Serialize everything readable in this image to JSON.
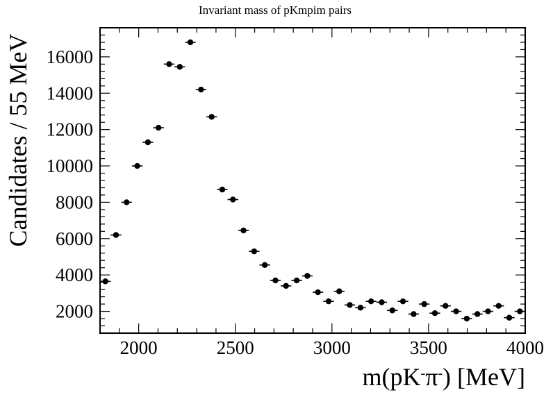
{
  "chart_data": {
    "type": "scatter",
    "title": "Invariant mass of pKmpim pairs",
    "xlabel_main": "m(pK",
    "xlabel_sup1": "-",
    "xlabel_pi": "π",
    "xlabel_sup2": "-",
    "xlabel_tail": ") [MeV]",
    "ylabel": "Candidates / 55 MeV",
    "xlim": [
      1800,
      4000
    ],
    "ylim": [
      800,
      17600
    ],
    "bin_width": 55,
    "xticks": [
      2000,
      2500,
      3000,
      3500,
      4000
    ],
    "yticks": [
      2000,
      4000,
      6000,
      8000,
      10000,
      12000,
      14000,
      16000
    ],
    "xtick_labels": [
      "2000",
      "2500",
      "3000",
      "3500",
      "4000"
    ],
    "ytick_labels": [
      "2000",
      "4000",
      "6000",
      "8000",
      "10000",
      "12000",
      "14000",
      "16000"
    ],
    "grid": false,
    "legend": "none",
    "series": [
      {
        "x": [
          1827.5,
          1882.5,
          1937.5,
          1992.5,
          2047.5,
          2102.5,
          2157.5,
          2212.5,
          2267.5,
          2322.5,
          2377.5,
          2432.5,
          2487.5,
          2542.5,
          2597.5,
          2652.5,
          2707.5,
          2762.5,
          2817.5,
          2872.5,
          2927.5,
          2982.5,
          3037.5,
          3092.5,
          3147.5,
          3202.5,
          3257.5,
          3312.5,
          3367.5,
          3422.5,
          3477.5,
          3532.5,
          3587.5,
          3642.5,
          3697.5,
          3752.5,
          3807.5,
          3862.5,
          3917.5,
          3972.5
        ],
        "y": [
          3650,
          6200,
          8000,
          10000,
          11300,
          12100,
          15600,
          15450,
          16800,
          14200,
          12700,
          8700,
          8150,
          6450,
          5300,
          4550,
          3700,
          3400,
          3700,
          3950,
          3050,
          2550,
          3100,
          2350,
          2200,
          2550,
          2500,
          2050,
          2550,
          1850,
          2400,
          1900,
          2300,
          2000,
          1600,
          1850,
          2000,
          2300,
          1650,
          2000
        ]
      }
    ]
  }
}
